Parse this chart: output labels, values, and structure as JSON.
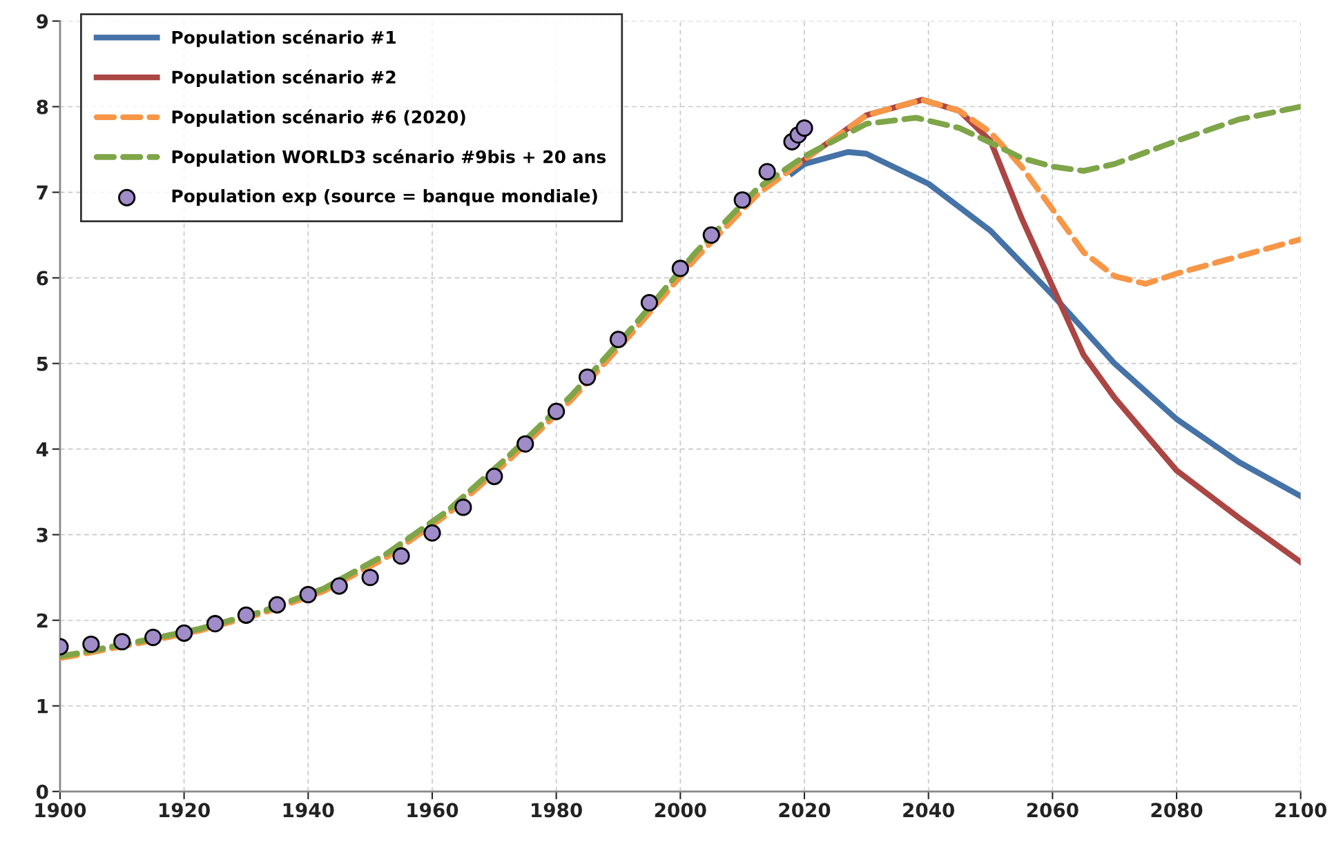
{
  "chart_data": {
    "type": "line",
    "xlim": [
      1900,
      2100
    ],
    "xticks": [
      1900,
      1920,
      1940,
      1960,
      1980,
      2000,
      2020,
      2040,
      2060,
      2080,
      2100
    ],
    "ylim": [
      0,
      9
    ],
    "yticks": [
      0,
      1,
      2,
      3,
      4,
      5,
      6,
      7,
      8,
      9
    ],
    "grid": true,
    "legend": "top left",
    "series": [
      {
        "name": "Population scénario #1",
        "color": "#4572a7",
        "line_style": "solid",
        "marker": "none",
        "x": [
          2018,
          2020,
          2027,
          2030,
          2040,
          2050,
          2060,
          2070,
          2080,
          2090,
          2100
        ],
        "values": [
          7.22,
          7.33,
          7.47,
          7.45,
          7.1,
          6.55,
          5.8,
          5.0,
          4.35,
          3.85,
          3.45
        ]
      },
      {
        "name": "Population scénario #2",
        "color": "#aa4643",
        "line_style": "solid",
        "marker": "none",
        "x": [
          2020,
          2030,
          2039,
          2045,
          2050,
          2055,
          2060,
          2065,
          2070,
          2080,
          2090,
          2100
        ],
        "values": [
          7.38,
          7.9,
          8.08,
          7.95,
          7.6,
          6.7,
          5.9,
          5.1,
          4.6,
          3.75,
          3.2,
          2.68
        ]
      },
      {
        "name": "Population scénario #6 (2020)",
        "color": "#f79646",
        "line_style": "dashed",
        "marker": "none",
        "x": [
          1900,
          1902.5,
          1912.5,
          1922.5,
          1932.5,
          1942.5,
          1952.5,
          1962.5,
          1972.5,
          1982.5,
          1992.5,
          2002.5,
          2012.5,
          2020,
          2030,
          2039,
          2045,
          2050,
          2055,
          2060,
          2065,
          2070,
          2075,
          2080,
          2090,
          2100
        ],
        "values": [
          1.56,
          1.59,
          1.73,
          1.88,
          2.08,
          2.34,
          2.73,
          3.24,
          3.88,
          4.58,
          5.38,
          6.23,
          6.98,
          7.38,
          7.9,
          8.08,
          7.95,
          7.7,
          7.3,
          6.8,
          6.3,
          6.02,
          5.93,
          6.05,
          6.25,
          6.45
        ]
      },
      {
        "name": "Population WORLD3 scénario #9bis + 20 ans",
        "color": "#7ea548",
        "line_style": "dashed",
        "marker": "none",
        "x": [
          1900,
          1902.5,
          1912.5,
          1922.5,
          1932.5,
          1942.5,
          1952.5,
          1962.5,
          1972.5,
          1982.5,
          1992.5,
          2002.5,
          2012.5,
          2020,
          2030,
          2038,
          2045,
          2050,
          2055,
          2060,
          2065,
          2070,
          2080,
          2090,
          2100
        ],
        "values": [
          1.58,
          1.61,
          1.75,
          1.9,
          2.1,
          2.37,
          2.77,
          3.28,
          3.93,
          4.63,
          5.44,
          6.3,
          7.05,
          7.42,
          7.8,
          7.87,
          7.75,
          7.58,
          7.4,
          7.3,
          7.25,
          7.33,
          7.6,
          7.85,
          8.0
        ]
      },
      {
        "name": "Population exp (source = banque mondiale)",
        "type": "scatter",
        "color": "#a08cc8",
        "marker": "circle",
        "x": [
          1900,
          1905,
          1910,
          1915,
          1920,
          1925,
          1930,
          1935,
          1940,
          1945,
          1950,
          1955,
          1960,
          1965,
          1970,
          1975,
          1980,
          1985,
          1990,
          1995,
          2000,
          2005,
          2010,
          2014,
          2018,
          2019,
          2020
        ],
        "values": [
          1.69,
          1.72,
          1.75,
          1.8,
          1.85,
          1.96,
          2.06,
          2.18,
          2.3,
          2.4,
          2.5,
          2.75,
          3.02,
          3.32,
          3.68,
          4.06,
          4.44,
          4.84,
          5.28,
          5.71,
          6.11,
          6.5,
          6.91,
          7.24,
          7.59,
          7.67,
          7.75
        ]
      }
    ]
  }
}
